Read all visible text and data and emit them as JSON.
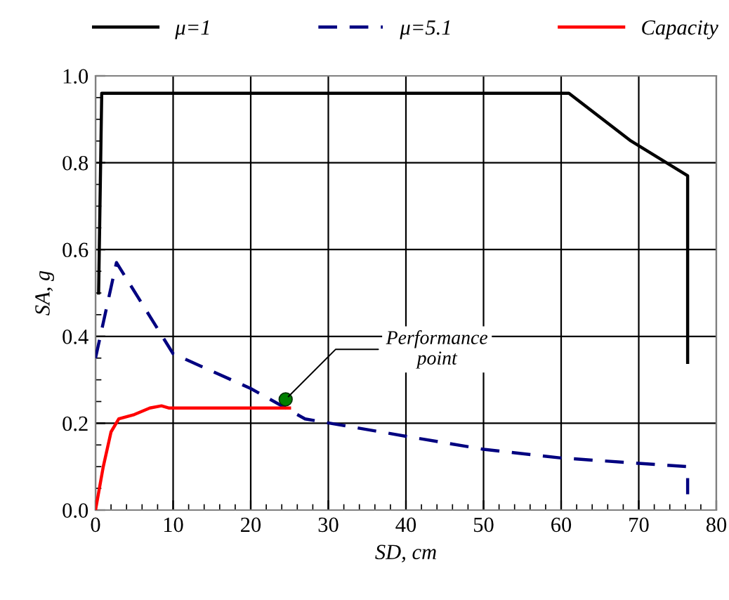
{
  "chart_data": {
    "type": "line",
    "xlabel": "SD, cm",
    "ylabel": "SA, g",
    "series": [
      {
        "name": "μ=1",
        "color": "#000000",
        "line_style": "solid",
        "x": [
          0.4,
          0.8,
          61,
          69,
          76.3,
          76.3
        ],
        "values": [
          0.5,
          0.96,
          0.96,
          0.85,
          0.77,
          0.34
        ]
      },
      {
        "name": "μ=5.1",
        "color": "#000080",
        "line_style": "dashed",
        "x": [
          0,
          2.7,
          10,
          20,
          27,
          40,
          50,
          60,
          76.3
        ],
        "values": [
          0.35,
          0.57,
          0.36,
          0.28,
          0.21,
          0.17,
          0.14,
          0.12,
          0.1
        ]
      },
      {
        "color": "#000080",
        "line_style": "solid",
        "x": [
          76.3,
          76.3
        ],
        "values": [
          0.07,
          0.04
        ]
      },
      {
        "name": "Capacity",
        "color": "#ff0000",
        "line_style": "solid",
        "x": [
          0,
          1,
          2,
          3,
          5,
          7,
          8.5,
          9.5,
          25
        ],
        "values": [
          0,
          0.1,
          0.18,
          0.21,
          0.22,
          0.235,
          0.24,
          0.235,
          0.235
        ]
      },
      {
        "type": "scatter",
        "color": "#008000",
        "marker": "circle",
        "x": [
          24.5
        ],
        "values": [
          0.255
        ]
      }
    ],
    "annotations": [
      {
        "text": "Performance\npoint",
        "x": 24.5,
        "y": 0.255
      }
    ],
    "xlim": [
      0,
      80
    ],
    "xticks": [
      0,
      10,
      20,
      30,
      40,
      50,
      60,
      70,
      80
    ],
    "ylim": [
      0,
      1.0
    ],
    "yticks": [
      {
        "value": 0,
        "label": "0.0"
      },
      0.2,
      0.4,
      0.6,
      0.8,
      {
        "value": 1.0,
        "label": "1.0"
      }
    ],
    "grid": true,
    "legend": "top"
  }
}
